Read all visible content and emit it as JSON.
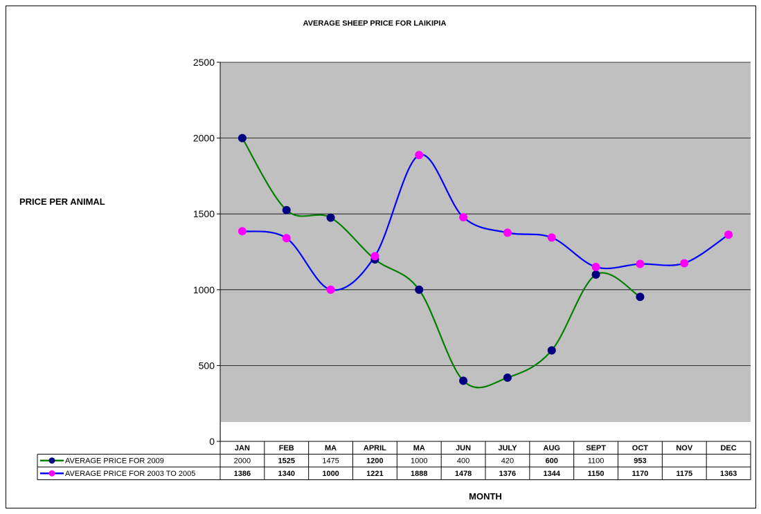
{
  "chart_data": {
    "type": "line",
    "title": "AVERAGE SHEEP PRICE FOR LAIKIPIA",
    "xlabel": "MONTH",
    "ylabel": "PRICE PER ANIMAL",
    "ylim": [
      0,
      2500
    ],
    "yticks": [
      "0",
      "500",
      "1000",
      "1500",
      "2000",
      "2500"
    ],
    "ytick_values": [
      0,
      500,
      1000,
      1500,
      2000,
      2500
    ],
    "grid": true,
    "legend": "data-table-bottom",
    "categories": [
      "JAN",
      "FEB",
      "MA",
      "APRIL",
      "MA",
      "JUN",
      "JULY",
      "AUG",
      "SEPT",
      "OCT",
      "NOV",
      "DEC"
    ],
    "series": [
      {
        "name": "AVERAGE PRICE FOR 2009",
        "values": [
          2000,
          1525,
          1475,
          1200,
          1000,
          400,
          420,
          600,
          1100,
          953,
          null,
          null
        ],
        "labels": [
          "2000",
          "1525",
          "1475",
          "1200",
          "1000",
          "400",
          "420",
          "600",
          "1100",
          "953",
          "",
          ""
        ],
        "bold": [
          false,
          true,
          false,
          true,
          false,
          false,
          false,
          true,
          false,
          true,
          false,
          false
        ],
        "line_color": "#008000",
        "marker_color": "#000080"
      },
      {
        "name": "AVERAGE PRICE FOR 2003 TO 2005",
        "values": [
          1386,
          1340,
          1000,
          1221,
          1888,
          1478,
          1376,
          1344,
          1150,
          1170,
          1175,
          1363
        ],
        "labels": [
          "1386",
          "1340",
          "1000",
          "1221",
          "1888",
          "1478",
          "1376",
          "1344",
          "1150",
          "1170",
          "1175",
          "1363"
        ],
        "bold": [
          true,
          true,
          true,
          true,
          true,
          true,
          true,
          true,
          true,
          true,
          true,
          true
        ],
        "line_color": "#0000ff",
        "marker_color": "#ff00ff"
      }
    ],
    "colors": {
      "plot_background": "#c0c0c0",
      "gridline": "#000000"
    }
  }
}
